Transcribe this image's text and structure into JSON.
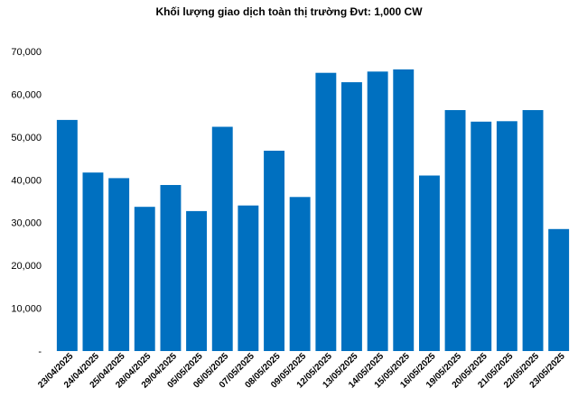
{
  "chart_data": {
    "type": "bar",
    "title": "Khối lượng giao dịch toàn thị trường Đvt: 1,000 CW",
    "xlabel": "",
    "ylabel": "",
    "categories": [
      "23/04/2025",
      "24/04/2025",
      "25/04/2025",
      "28/04/2025",
      "29/04/2025",
      "05/05/2025",
      "06/05/2025",
      "07/05/2025",
      "08/05/2025",
      "09/05/2025",
      "12/05/2025",
      "13/05/2025",
      "14/05/2025",
      "15/05/2025",
      "16/05/2025",
      "19/05/2025",
      "20/05/2025",
      "21/05/2025",
      "22/05/2025",
      "23/05/2025"
    ],
    "values": [
      54000,
      41700,
      40400,
      33700,
      38800,
      32700,
      52400,
      34000,
      46800,
      36000,
      65000,
      62800,
      65300,
      65800,
      41000,
      56300,
      53600,
      53700,
      56300,
      28500
    ],
    "ylim": [
      0,
      70000
    ],
    "y_ticks": [
      {
        "value": 0,
        "label": "-"
      },
      {
        "value": 10000,
        "label": "10,000"
      },
      {
        "value": 20000,
        "label": "20,000"
      },
      {
        "value": 30000,
        "label": "30,000"
      },
      {
        "value": 40000,
        "label": "40,000"
      },
      {
        "value": 50000,
        "label": "50,000"
      },
      {
        "value": 60000,
        "label": "60,000"
      },
      {
        "value": 70000,
        "label": "70,000"
      }
    ],
    "bar_color": "#0070C0",
    "grid": false,
    "legend": "none"
  }
}
